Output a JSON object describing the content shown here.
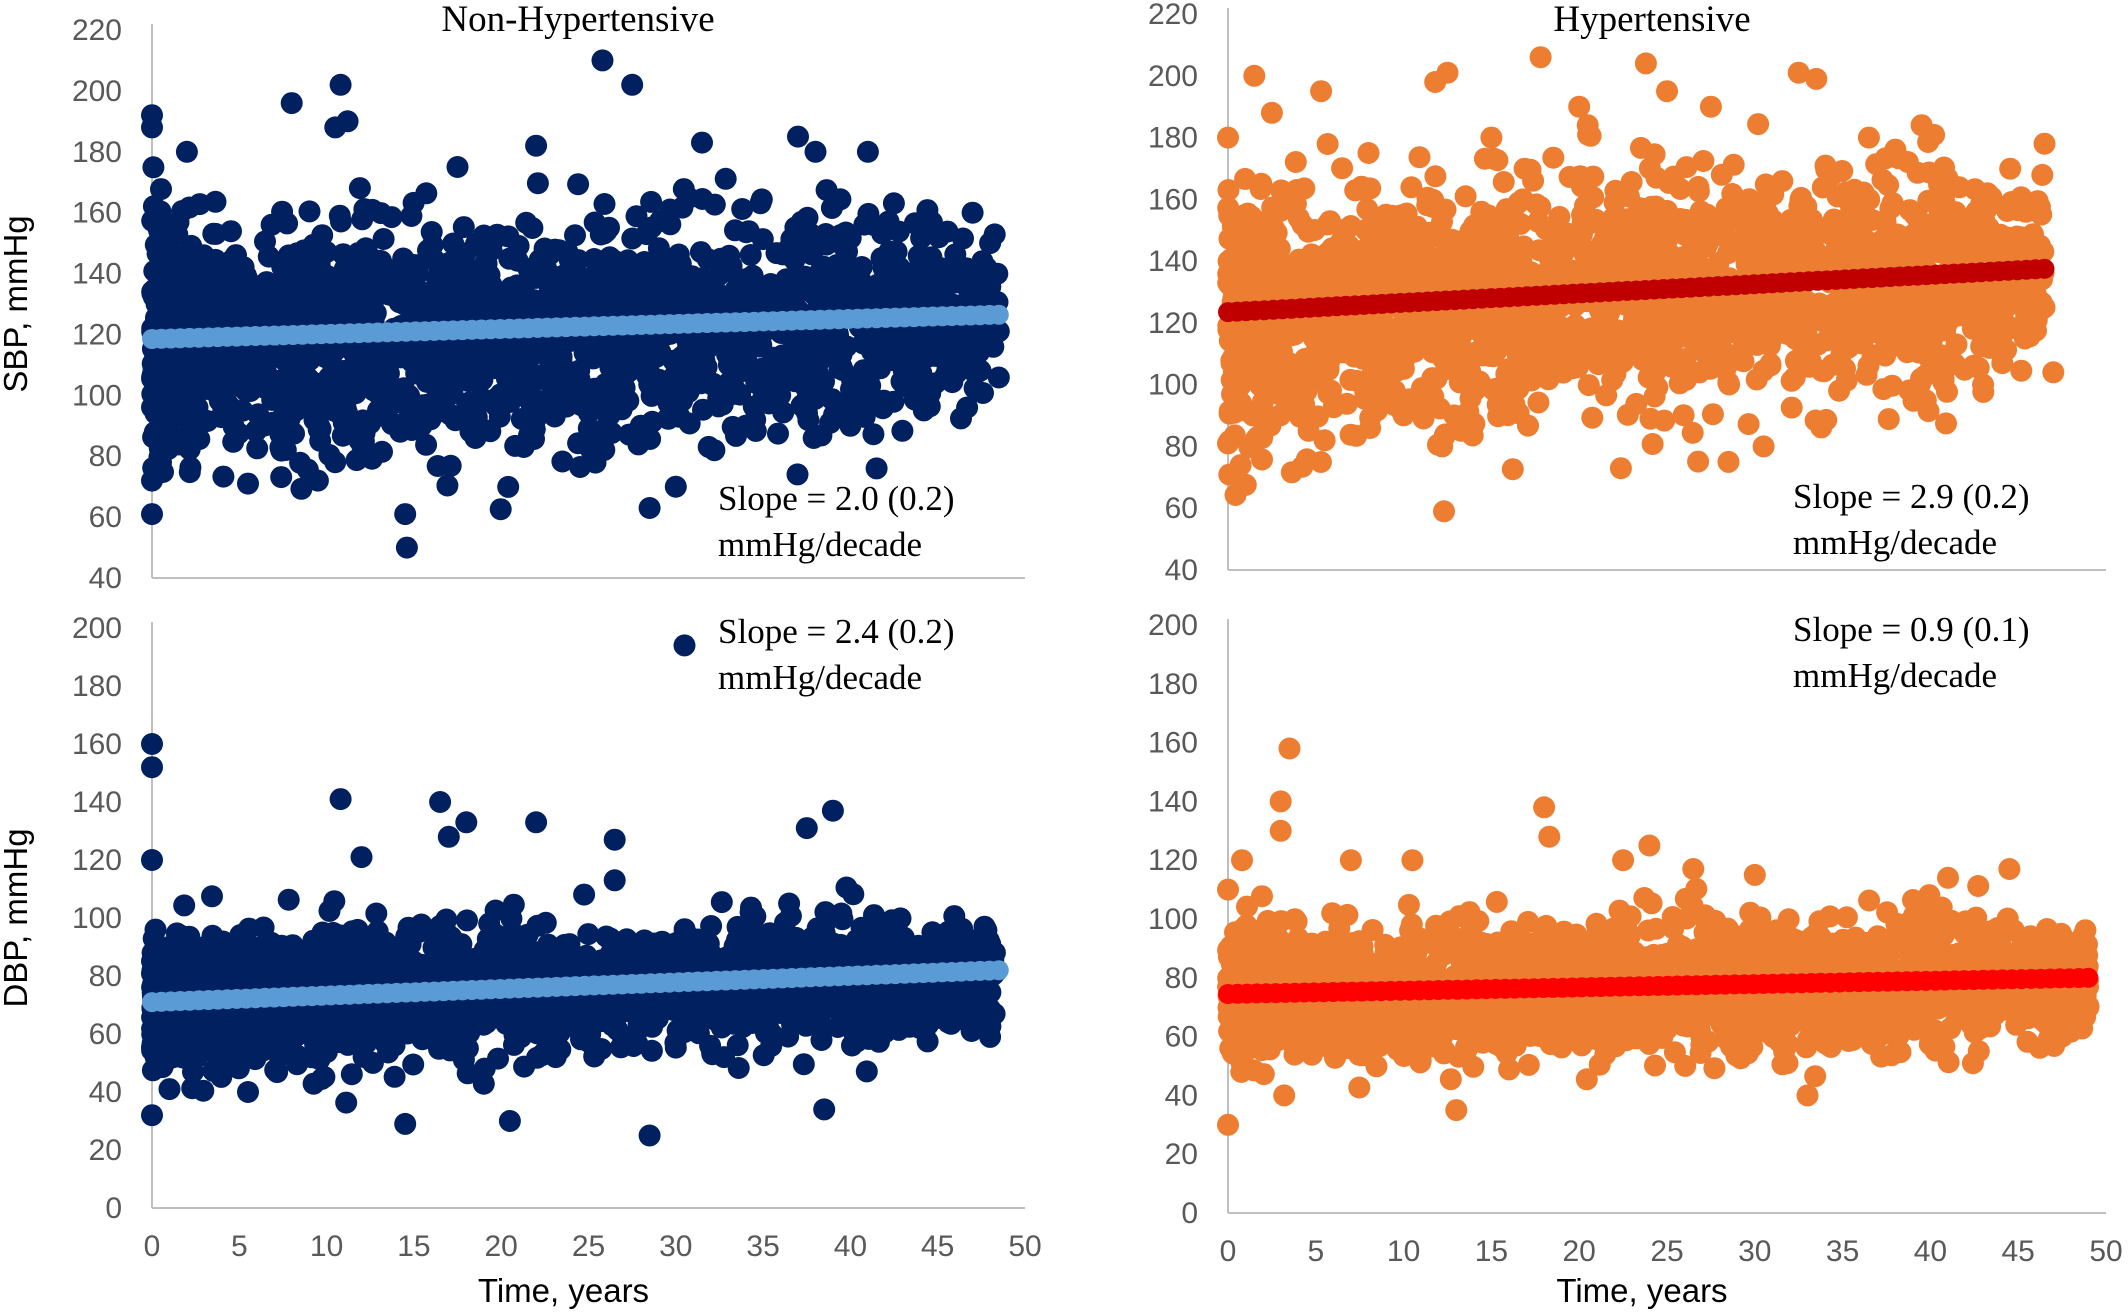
{
  "colors": {
    "nonhyp_points": "#002060",
    "nonhyp_trend": "#5b9bd5",
    "hyp_points": "#ed7d31",
    "hyp_sbp_trend": "#c00000",
    "hyp_dbp_trend": "#ff0000",
    "axis": "#bfbfbf",
    "tick_text": "#595959"
  },
  "chart_data": [
    {
      "type": "scatter",
      "panel": "top-left",
      "title": "Non-Hypertensive",
      "xlabel": "",
      "ylabel": "SBP, mmHg",
      "xlim": [
        0,
        50
      ],
      "ylim": [
        40,
        220
      ],
      "yticks": [
        "40",
        "60",
        "80",
        "100",
        "120",
        "140",
        "160",
        "180",
        "200",
        "220"
      ],
      "xticks": [],
      "grid": false,
      "annotation": [
        "Slope = 2.0 (0.2)",
        "mmHg/decade"
      ],
      "trend": {
        "x": [
          0,
          48.5
        ],
        "y": [
          118.5,
          126.5
        ]
      },
      "cloud": {
        "center_start": 118,
        "center_end": 126,
        "spread": 26,
        "x_max": 48.5,
        "n": 2000
      },
      "points": [
        {
          "x": 0,
          "y": 192
        },
        {
          "x": 0,
          "y": 188
        },
        {
          "x": 0,
          "y": 72
        },
        {
          "x": 0,
          "y": 61
        },
        {
          "x": 10.5,
          "y": 188
        },
        {
          "x": 10.8,
          "y": 202
        },
        {
          "x": 11.2,
          "y": 190
        },
        {
          "x": 14.5,
          "y": 61
        },
        {
          "x": 14.6,
          "y": 50
        },
        {
          "x": 25.8,
          "y": 210
        },
        {
          "x": 27.5,
          "y": 202
        },
        {
          "x": 28.5,
          "y": 63
        },
        {
          "x": 31.5,
          "y": 183
        },
        {
          "x": 37,
          "y": 185
        },
        {
          "x": 41.5,
          "y": 76
        },
        {
          "x": 41,
          "y": 180
        },
        {
          "x": 47,
          "y": 160
        },
        {
          "x": 48,
          "y": 150
        },
        {
          "x": 48.5,
          "y": 121
        },
        {
          "x": 8,
          "y": 196
        },
        {
          "x": 2,
          "y": 180
        },
        {
          "x": 5.5,
          "y": 71
        },
        {
          "x": 9.5,
          "y": 72
        },
        {
          "x": 30,
          "y": 70
        },
        {
          "x": 34,
          "y": 90
        },
        {
          "x": 40,
          "y": 90
        },
        {
          "x": 17.5,
          "y": 175
        },
        {
          "x": 38,
          "y": 180
        },
        {
          "x": 22,
          "y": 182
        }
      ]
    },
    {
      "type": "scatter",
      "panel": "top-right",
      "title": "Hypertensive",
      "xlabel": "",
      "ylabel": "",
      "xlim": [
        0,
        50
      ],
      "ylim": [
        40,
        220
      ],
      "yticks": [
        "40",
        "60",
        "80",
        "100",
        "120",
        "140",
        "160",
        "180",
        "200",
        "220"
      ],
      "xticks": [],
      "grid": false,
      "annotation": [
        "Slope = 2.9 (0.2)",
        "mmHg/decade"
      ],
      "trend": {
        "x": [
          0,
          46.5
        ],
        "y": [
          123.5,
          137.5
        ]
      },
      "cloud": {
        "center_start": 122,
        "center_end": 136,
        "spread": 27,
        "x_max": 46.5,
        "n": 2000
      },
      "points": [
        {
          "x": 0,
          "y": 180
        },
        {
          "x": 0,
          "y": 81
        },
        {
          "x": 1.5,
          "y": 81
        },
        {
          "x": 1.5,
          "y": 200
        },
        {
          "x": 2.5,
          "y": 188
        },
        {
          "x": 5.5,
          "y": 82
        },
        {
          "x": 5.3,
          "y": 195
        },
        {
          "x": 11.8,
          "y": 198
        },
        {
          "x": 12.5,
          "y": 201
        },
        {
          "x": 12.3,
          "y": 59
        },
        {
          "x": 12.2,
          "y": 80
        },
        {
          "x": 17.8,
          "y": 206
        },
        {
          "x": 23.8,
          "y": 204
        },
        {
          "x": 27.5,
          "y": 190
        },
        {
          "x": 28.5,
          "y": 75
        },
        {
          "x": 32.5,
          "y": 201
        },
        {
          "x": 33.5,
          "y": 199
        },
        {
          "x": 36.5,
          "y": 180
        },
        {
          "x": 39.5,
          "y": 184
        },
        {
          "x": 43,
          "y": 100
        },
        {
          "x": 46.5,
          "y": 178
        },
        {
          "x": 47,
          "y": 104
        },
        {
          "x": 46.5,
          "y": 125
        },
        {
          "x": 15,
          "y": 180
        },
        {
          "x": 20,
          "y": 190
        },
        {
          "x": 25,
          "y": 195
        },
        {
          "x": 30.5,
          "y": 80
        },
        {
          "x": 8,
          "y": 175
        }
      ]
    },
    {
      "type": "scatter",
      "panel": "bottom-left",
      "title": "",
      "xlabel": "Time, years",
      "ylabel": "DBP, mmHg",
      "xlim": [
        0,
        50
      ],
      "ylim": [
        0,
        200
      ],
      "yticks": [
        "0",
        "20",
        "40",
        "60",
        "80",
        "100",
        "120",
        "140",
        "160",
        "180",
        "200"
      ],
      "xticks": [
        "0",
        "5",
        "10",
        "15",
        "20",
        "25",
        "30",
        "35",
        "40",
        "45",
        "50"
      ],
      "grid": false,
      "annotation": [
        "Slope = 2.4 (0.2)",
        "mmHg/decade"
      ],
      "trend": {
        "x": [
          0,
          48.5
        ],
        "y": [
          71,
          82
        ]
      },
      "cloud": {
        "center_start": 71,
        "center_end": 80,
        "spread": 16,
        "x_max": 48.5,
        "n": 2000
      },
      "points": [
        {
          "x": 0,
          "y": 160
        },
        {
          "x": 0,
          "y": 152
        },
        {
          "x": 0,
          "y": 120
        },
        {
          "x": 0,
          "y": 32
        },
        {
          "x": 10.8,
          "y": 141
        },
        {
          "x": 16.5,
          "y": 140
        },
        {
          "x": 18,
          "y": 133
        },
        {
          "x": 17,
          "y": 128
        },
        {
          "x": 22,
          "y": 133
        },
        {
          "x": 26.5,
          "y": 127
        },
        {
          "x": 26.5,
          "y": 113
        },
        {
          "x": 12,
          "y": 121
        },
        {
          "x": 14.5,
          "y": 29
        },
        {
          "x": 20.5,
          "y": 30
        },
        {
          "x": 28.5,
          "y": 25
        },
        {
          "x": 37.5,
          "y": 131
        },
        {
          "x": 39,
          "y": 137
        },
        {
          "x": 30.5,
          "y": 194
        },
        {
          "x": 38.5,
          "y": 34
        },
        {
          "x": 45,
          "y": 90
        },
        {
          "x": 48,
          "y": 59
        },
        {
          "x": 47,
          "y": 65
        },
        {
          "x": 5.5,
          "y": 40
        },
        {
          "x": 1,
          "y": 41
        }
      ]
    },
    {
      "type": "scatter",
      "panel": "bottom-right",
      "title": "",
      "xlabel": "Time, years",
      "ylabel": "",
      "xlim": [
        0,
        50
      ],
      "ylim": [
        0,
        200
      ],
      "yticks": [
        "0",
        "20",
        "40",
        "60",
        "80",
        "100",
        "120",
        "140",
        "160",
        "180",
        "200"
      ],
      "xticks": [
        "0",
        "5",
        "10",
        "15",
        "20",
        "25",
        "30",
        "35",
        "40",
        "45",
        "50"
      ],
      "grid": false,
      "annotation": [
        "Slope = 0.9 (0.1)",
        "mmHg/decade"
      ],
      "trend": {
        "x": [
          0,
          49
        ],
        "y": [
          74.5,
          80
        ]
      },
      "cloud": {
        "center_start": 74,
        "center_end": 79,
        "spread": 16,
        "x_max": 49,
        "n": 2000
      },
      "points": [
        {
          "x": 0,
          "y": 30
        },
        {
          "x": 0,
          "y": 110
        },
        {
          "x": 0.8,
          "y": 120
        },
        {
          "x": 3.5,
          "y": 158
        },
        {
          "x": 3,
          "y": 140
        },
        {
          "x": 3,
          "y": 130
        },
        {
          "x": 3.2,
          "y": 40
        },
        {
          "x": 7,
          "y": 120
        },
        {
          "x": 10.5,
          "y": 120
        },
        {
          "x": 13,
          "y": 35
        },
        {
          "x": 18,
          "y": 138
        },
        {
          "x": 18.3,
          "y": 128
        },
        {
          "x": 22.5,
          "y": 120
        },
        {
          "x": 24,
          "y": 125
        },
        {
          "x": 26.5,
          "y": 117
        },
        {
          "x": 30,
          "y": 115
        },
        {
          "x": 33,
          "y": 40
        },
        {
          "x": 39.5,
          "y": 104
        },
        {
          "x": 41,
          "y": 114
        },
        {
          "x": 44.5,
          "y": 117
        },
        {
          "x": 46.5,
          "y": 86
        },
        {
          "x": 48,
          "y": 90
        },
        {
          "x": 49,
          "y": 70
        },
        {
          "x": 47.5,
          "y": 60
        }
      ]
    }
  ]
}
